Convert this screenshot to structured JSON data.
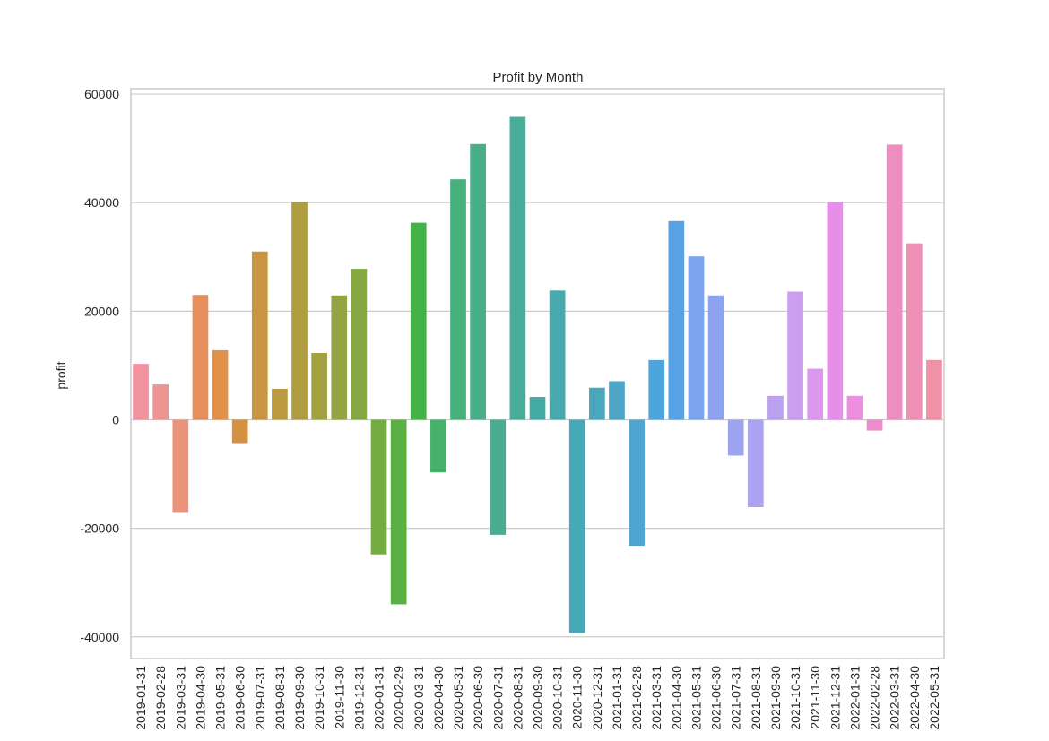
{
  "chart_data": {
    "type": "bar",
    "title": "Profit by Month",
    "xlabel": "",
    "ylabel": "profit",
    "ylim": [
      -44000,
      61000
    ],
    "yticks": [
      -40000,
      -20000,
      0,
      20000,
      40000,
      60000
    ],
    "grid": true,
    "categories": [
      "2019-01-31",
      "2019-02-28",
      "2019-03-31",
      "2019-04-30",
      "2019-05-31",
      "2019-06-30",
      "2019-07-31",
      "2019-08-31",
      "2019-09-30",
      "2019-10-31",
      "2019-11-30",
      "2019-12-31",
      "2020-01-31",
      "2020-02-29",
      "2020-03-31",
      "2020-04-30",
      "2020-05-31",
      "2020-06-30",
      "2020-07-31",
      "2020-08-31",
      "2020-09-30",
      "2020-10-31",
      "2020-11-30",
      "2020-12-31",
      "2021-01-31",
      "2021-02-28",
      "2021-03-31",
      "2021-04-30",
      "2021-05-31",
      "2021-06-30",
      "2021-07-31",
      "2021-08-31",
      "2021-09-30",
      "2021-10-31",
      "2021-11-30",
      "2021-12-31",
      "2022-01-31",
      "2022-02-28",
      "2022-03-31",
      "2022-04-30",
      "2022-05-31"
    ],
    "values": [
      10300,
      6500,
      -17000,
      23000,
      12800,
      -4300,
      31000,
      5700,
      40200,
      12300,
      22900,
      27800,
      -24800,
      -34000,
      36300,
      -9700,
      44300,
      50800,
      -21200,
      55800,
      4200,
      23800,
      -39300,
      5900,
      7100,
      -23200,
      11000,
      36600,
      30100,
      22900,
      -6600,
      -16100,
      4400,
      23600,
      9400,
      40200,
      4400,
      -2000,
      50700,
      32500,
      11000
    ],
    "colors": [
      "#f0929f",
      "#ee9594",
      "#ed927a",
      "#e8905d",
      "#e19148",
      "#d59142",
      "#c99541",
      "#bc9a41",
      "#ae9e41",
      "#a2a142",
      "#94a442",
      "#86a842",
      "#72ac42",
      "#58b042",
      "#43b347",
      "#46b16a",
      "#48b07c",
      "#4aaf88",
      "#4aad92",
      "#49ad9b",
      "#47aba5",
      "#48aaae",
      "#47a9b7",
      "#4aa7be",
      "#4da6c6",
      "#4ea5d0",
      "#4da5dc",
      "#56a2e4",
      "#7aa5ec",
      "#8ea3ee",
      "#9ea4ef",
      "#aba3f0",
      "#baa2f0",
      "#cb9ef0",
      "#db98ef",
      "#e58fe9",
      "#ed8ee1",
      "#ee8bcc",
      "#ee8ec0",
      "#ee90b5",
      "#ef91a7"
    ]
  }
}
